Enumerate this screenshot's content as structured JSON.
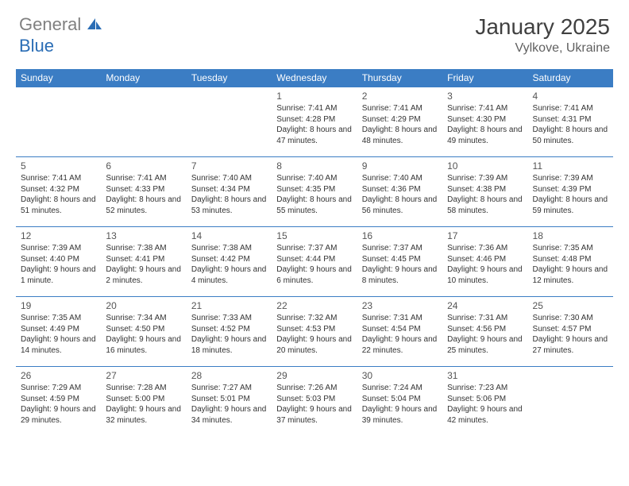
{
  "logo": {
    "text_general": "General",
    "text_blue": "Blue"
  },
  "title": "January 2025",
  "location": "Vylkove, Ukraine",
  "colors": {
    "header_bg": "#3b7dc4",
    "header_text": "#ffffff",
    "body_text": "#333333",
    "daynum_text": "#555555",
    "border": "#3b7dc4",
    "background": "#ffffff"
  },
  "day_headers": [
    "Sunday",
    "Monday",
    "Tuesday",
    "Wednesday",
    "Thursday",
    "Friday",
    "Saturday"
  ],
  "weeks": [
    [
      null,
      null,
      null,
      {
        "n": "1",
        "sr": "7:41 AM",
        "ss": "4:28 PM",
        "dl": "8 hours and 47 minutes."
      },
      {
        "n": "2",
        "sr": "7:41 AM",
        "ss": "4:29 PM",
        "dl": "8 hours and 48 minutes."
      },
      {
        "n": "3",
        "sr": "7:41 AM",
        "ss": "4:30 PM",
        "dl": "8 hours and 49 minutes."
      },
      {
        "n": "4",
        "sr": "7:41 AM",
        "ss": "4:31 PM",
        "dl": "8 hours and 50 minutes."
      }
    ],
    [
      {
        "n": "5",
        "sr": "7:41 AM",
        "ss": "4:32 PM",
        "dl": "8 hours and 51 minutes."
      },
      {
        "n": "6",
        "sr": "7:41 AM",
        "ss": "4:33 PM",
        "dl": "8 hours and 52 minutes."
      },
      {
        "n": "7",
        "sr": "7:40 AM",
        "ss": "4:34 PM",
        "dl": "8 hours and 53 minutes."
      },
      {
        "n": "8",
        "sr": "7:40 AM",
        "ss": "4:35 PM",
        "dl": "8 hours and 55 minutes."
      },
      {
        "n": "9",
        "sr": "7:40 AM",
        "ss": "4:36 PM",
        "dl": "8 hours and 56 minutes."
      },
      {
        "n": "10",
        "sr": "7:39 AM",
        "ss": "4:38 PM",
        "dl": "8 hours and 58 minutes."
      },
      {
        "n": "11",
        "sr": "7:39 AM",
        "ss": "4:39 PM",
        "dl": "8 hours and 59 minutes."
      }
    ],
    [
      {
        "n": "12",
        "sr": "7:39 AM",
        "ss": "4:40 PM",
        "dl": "9 hours and 1 minute."
      },
      {
        "n": "13",
        "sr": "7:38 AM",
        "ss": "4:41 PM",
        "dl": "9 hours and 2 minutes."
      },
      {
        "n": "14",
        "sr": "7:38 AM",
        "ss": "4:42 PM",
        "dl": "9 hours and 4 minutes."
      },
      {
        "n": "15",
        "sr": "7:37 AM",
        "ss": "4:44 PM",
        "dl": "9 hours and 6 minutes."
      },
      {
        "n": "16",
        "sr": "7:37 AM",
        "ss": "4:45 PM",
        "dl": "9 hours and 8 minutes."
      },
      {
        "n": "17",
        "sr": "7:36 AM",
        "ss": "4:46 PM",
        "dl": "9 hours and 10 minutes."
      },
      {
        "n": "18",
        "sr": "7:35 AM",
        "ss": "4:48 PM",
        "dl": "9 hours and 12 minutes."
      }
    ],
    [
      {
        "n": "19",
        "sr": "7:35 AM",
        "ss": "4:49 PM",
        "dl": "9 hours and 14 minutes."
      },
      {
        "n": "20",
        "sr": "7:34 AM",
        "ss": "4:50 PM",
        "dl": "9 hours and 16 minutes."
      },
      {
        "n": "21",
        "sr": "7:33 AM",
        "ss": "4:52 PM",
        "dl": "9 hours and 18 minutes."
      },
      {
        "n": "22",
        "sr": "7:32 AM",
        "ss": "4:53 PM",
        "dl": "9 hours and 20 minutes."
      },
      {
        "n": "23",
        "sr": "7:31 AM",
        "ss": "4:54 PM",
        "dl": "9 hours and 22 minutes."
      },
      {
        "n": "24",
        "sr": "7:31 AM",
        "ss": "4:56 PM",
        "dl": "9 hours and 25 minutes."
      },
      {
        "n": "25",
        "sr": "7:30 AM",
        "ss": "4:57 PM",
        "dl": "9 hours and 27 minutes."
      }
    ],
    [
      {
        "n": "26",
        "sr": "7:29 AM",
        "ss": "4:59 PM",
        "dl": "9 hours and 29 minutes."
      },
      {
        "n": "27",
        "sr": "7:28 AM",
        "ss": "5:00 PM",
        "dl": "9 hours and 32 minutes."
      },
      {
        "n": "28",
        "sr": "7:27 AM",
        "ss": "5:01 PM",
        "dl": "9 hours and 34 minutes."
      },
      {
        "n": "29",
        "sr": "7:26 AM",
        "ss": "5:03 PM",
        "dl": "9 hours and 37 minutes."
      },
      {
        "n": "30",
        "sr": "7:24 AM",
        "ss": "5:04 PM",
        "dl": "9 hours and 39 minutes."
      },
      {
        "n": "31",
        "sr": "7:23 AM",
        "ss": "5:06 PM",
        "dl": "9 hours and 42 minutes."
      },
      null
    ]
  ],
  "labels": {
    "sunrise": "Sunrise:",
    "sunset": "Sunset:",
    "daylight": "Daylight:"
  }
}
